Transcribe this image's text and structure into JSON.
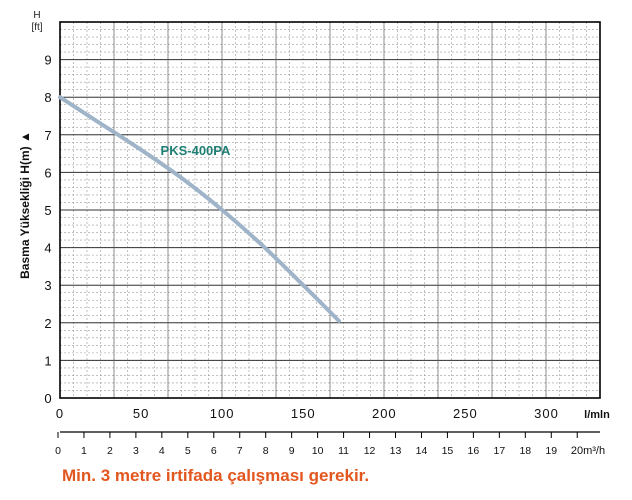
{
  "chart_data": {
    "type": "line",
    "ylabel": "Basma Yüksekliği H(m) ▲",
    "y2label": {
      "line1": "H",
      "line2": "[ft]"
    },
    "xunit_primary": "l/mln",
    "xunit_secondary": "20m³/h",
    "ylim": [
      0,
      10
    ],
    "xlim": [
      0,
      333
    ],
    "y_ticks": [
      "0",
      "1",
      "2",
      "3",
      "4",
      "5",
      "6",
      "7",
      "8",
      "9"
    ],
    "x_ticks_primary": [
      "0",
      "50",
      "100",
      "150",
      "200",
      "250",
      "300"
    ],
    "x_ticks_secondary": [
      "0",
      "1",
      "2",
      "3",
      "4",
      "5",
      "6",
      "7",
      "8",
      "9",
      "10",
      "11",
      "12",
      "13",
      "14",
      "15",
      "16",
      "17",
      "18",
      "19"
    ],
    "grid": true,
    "series": [
      {
        "name": "PKS-400PA",
        "color": "#9fb4c8",
        "label_color": "#1f7f74",
        "x": [
          0,
          25,
          50,
          75,
          100,
          125,
          150,
          172
        ],
        "y": [
          8.0,
          7.3,
          6.6,
          5.85,
          5.0,
          4.05,
          3.0,
          2.05
        ]
      }
    ]
  },
  "footer_note": "Min. 3 metre irtifada çalışması gerekir."
}
